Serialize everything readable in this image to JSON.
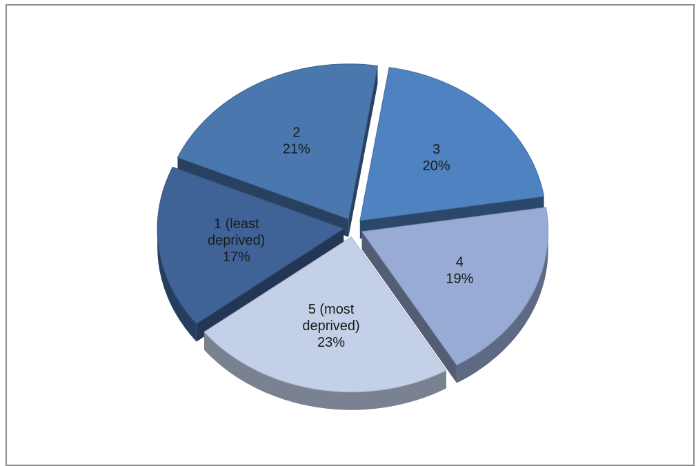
{
  "chart_data": {
    "type": "pie",
    "style": "3d-exploded",
    "title": "",
    "legend": "none",
    "slices": [
      {
        "label": "1 (least deprived)",
        "label_lines": [
          "1 (least",
          "deprived)",
          "17%"
        ],
        "value": 17,
        "percent_label": "17%",
        "color": "#3f6397"
      },
      {
        "label": "2",
        "label_lines": [
          "2",
          "21%"
        ],
        "value": 21,
        "percent_label": "21%",
        "color": "#4a77ae"
      },
      {
        "label": "3",
        "label_lines": [
          "3",
          "20%"
        ],
        "value": 20,
        "percent_label": "20%",
        "color": "#4e82c1"
      },
      {
        "label": "4",
        "label_lines": [
          "4",
          "19%"
        ],
        "value": 19,
        "percent_label": "19%",
        "color": "#97abd5"
      },
      {
        "label": "5 (most deprived)",
        "label_lines": [
          "5 (most",
          "deprived)",
          "23%"
        ],
        "value": 23,
        "percent_label": "23%",
        "color": "#c4d0e8"
      }
    ]
  }
}
